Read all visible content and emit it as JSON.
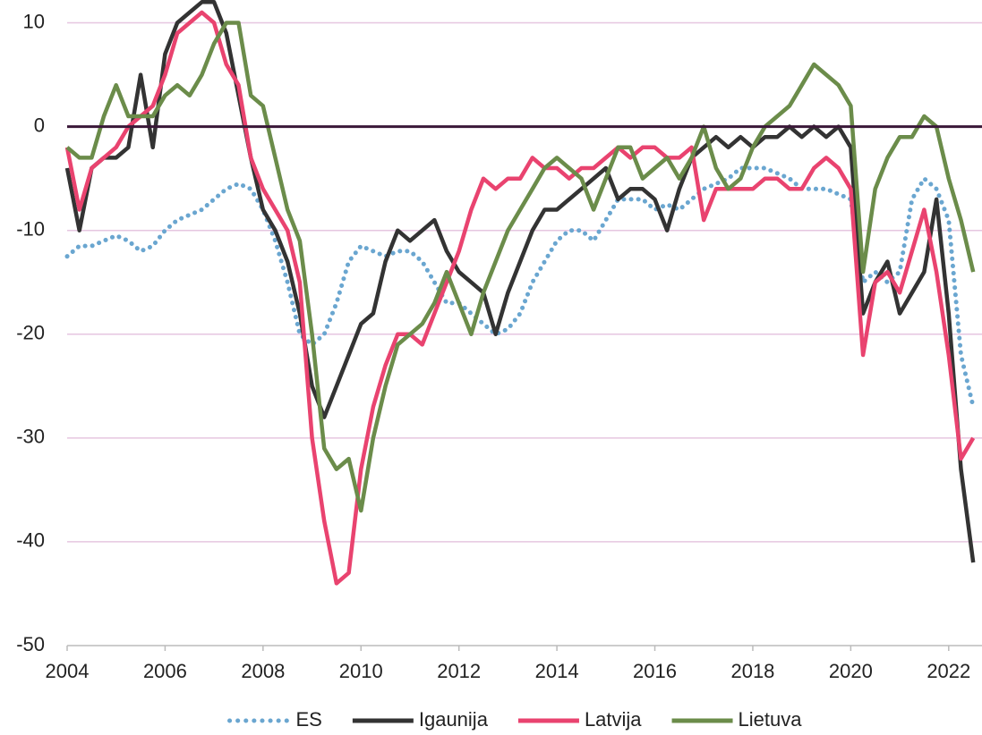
{
  "chart_data": {
    "type": "line",
    "x": [
      2004.0,
      2004.25,
      2004.5,
      2004.75,
      2005.0,
      2005.25,
      2005.5,
      2005.75,
      2006.0,
      2006.25,
      2006.5,
      2006.75,
      2007.0,
      2007.25,
      2007.5,
      2007.75,
      2008.0,
      2008.25,
      2008.5,
      2008.75,
      2009.0,
      2009.25,
      2009.5,
      2009.75,
      2010.0,
      2010.25,
      2010.5,
      2010.75,
      2011.0,
      2011.25,
      2011.5,
      2011.75,
      2012.0,
      2012.25,
      2012.5,
      2012.75,
      2013.0,
      2013.25,
      2013.5,
      2013.75,
      2014.0,
      2014.25,
      2014.5,
      2014.75,
      2015.0,
      2015.25,
      2015.5,
      2015.75,
      2016.0,
      2016.25,
      2016.5,
      2016.75,
      2017.0,
      2017.25,
      2017.5,
      2017.75,
      2018.0,
      2018.25,
      2018.5,
      2018.75,
      2019.0,
      2019.25,
      2019.5,
      2019.75,
      2020.0,
      2020.25,
      2020.5,
      2020.75,
      2021.0,
      2021.25,
      2021.5,
      2021.75,
      2022.0,
      2022.25,
      2022.5
    ],
    "series": [
      {
        "name": "ES",
        "color": "#6aa6d0",
        "dotted": true,
        "values": [
          -12.5,
          -11.5,
          -11.5,
          -11,
          -10.5,
          -11,
          -12,
          -11.5,
          -10,
          -9,
          -8.5,
          -8,
          -7,
          -6,
          -5.5,
          -6,
          -8,
          -11,
          -15,
          -20,
          -21,
          -20,
          -17,
          -13,
          -11.5,
          -12,
          -12.5,
          -12,
          -12,
          -13,
          -15,
          -17,
          -17,
          -18,
          -19,
          -20,
          -19.5,
          -18,
          -15,
          -13,
          -11,
          -10,
          -10,
          -11,
          -9,
          -7,
          -7,
          -7,
          -8,
          -7.5,
          -8,
          -7,
          -6,
          -5.5,
          -5,
          -4,
          -4,
          -4,
          -4.5,
          -5,
          -6,
          -6,
          -6,
          -6.5,
          -7,
          -15,
          -14,
          -15,
          -14,
          -7,
          -5,
          -6,
          -9,
          -22,
          -27
        ]
      },
      {
        "name": "Igaunija",
        "color": "#333333",
        "values": [
          -4,
          -10,
          -4,
          -3,
          -3,
          -2,
          5,
          -2,
          7,
          10,
          11,
          12,
          12,
          9,
          3,
          -3,
          -8,
          -10,
          -13,
          -18,
          -25,
          -28,
          -25,
          -22,
          -19,
          -18,
          -13,
          -10,
          -11,
          -10,
          -9,
          -12,
          -14,
          -15,
          -16,
          -20,
          -16,
          -13,
          -10,
          -8,
          -8,
          -7,
          -6,
          -5,
          -4,
          -7,
          -6,
          -6,
          -7,
          -10,
          -6,
          -3,
          -2,
          -1,
          -2,
          -1,
          -2,
          -1,
          -1,
          0,
          -1,
          0,
          -1,
          0,
          -2,
          -18,
          -15,
          -13,
          -18,
          -16,
          -14,
          -7,
          -18,
          -33,
          -42
        ]
      },
      {
        "name": "Latvija",
        "color": "#e9436f",
        "values": [
          -2,
          -8,
          -4,
          -3,
          -2,
          0,
          1,
          2,
          5,
          9,
          10,
          11,
          10,
          6,
          4,
          -3,
          -6,
          -8,
          -10,
          -15,
          -30,
          -38,
          -44,
          -43,
          -33,
          -27,
          -23,
          -20,
          -20,
          -21,
          -18,
          -15,
          -12,
          -8,
          -5,
          -6,
          -5,
          -5,
          -3,
          -4,
          -4,
          -5,
          -4,
          -4,
          -3,
          -2,
          -3,
          -2,
          -2,
          -3,
          -3,
          -2,
          -9,
          -6,
          -6,
          -6,
          -6,
          -5,
          -5,
          -6,
          -6,
          -4,
          -3,
          -4,
          -6,
          -22,
          -15,
          -14,
          -16,
          -12,
          -8,
          -14,
          -22,
          -32,
          -30
        ]
      },
      {
        "name": "Lietuva",
        "color": "#6b8c4a",
        "values": [
          -2,
          -3,
          -3,
          1,
          4,
          1,
          1,
          1,
          3,
          4,
          3,
          5,
          8,
          10,
          10,
          3,
          2,
          -3,
          -8,
          -11,
          -20,
          -31,
          -33,
          -32,
          -37,
          -30,
          -25,
          -21,
          -20,
          -19,
          -17,
          -14,
          -17,
          -20,
          -16,
          -13,
          -10,
          -8,
          -6,
          -4,
          -3,
          -4,
          -5,
          -8,
          -5,
          -2,
          -2,
          -5,
          -4,
          -3,
          -5,
          -3,
          0,
          -4,
          -6,
          -5,
          -2,
          0,
          1,
          2,
          4,
          6,
          5,
          4,
          2,
          -14,
          -6,
          -3,
          -1,
          -1,
          1,
          0,
          -5,
          -9,
          -14
        ]
      }
    ],
    "xlim": [
      2004,
      2022.68
    ],
    "xticks": [
      2004,
      2006,
      2008,
      2010,
      2012,
      2014,
      2016,
      2018,
      2020,
      2022
    ],
    "ylim": [
      -50,
      12.2
    ],
    "yticks": [
      -50,
      -40,
      -30,
      -20,
      -10,
      0,
      10
    ],
    "grid": true,
    "legend": "bottom"
  }
}
